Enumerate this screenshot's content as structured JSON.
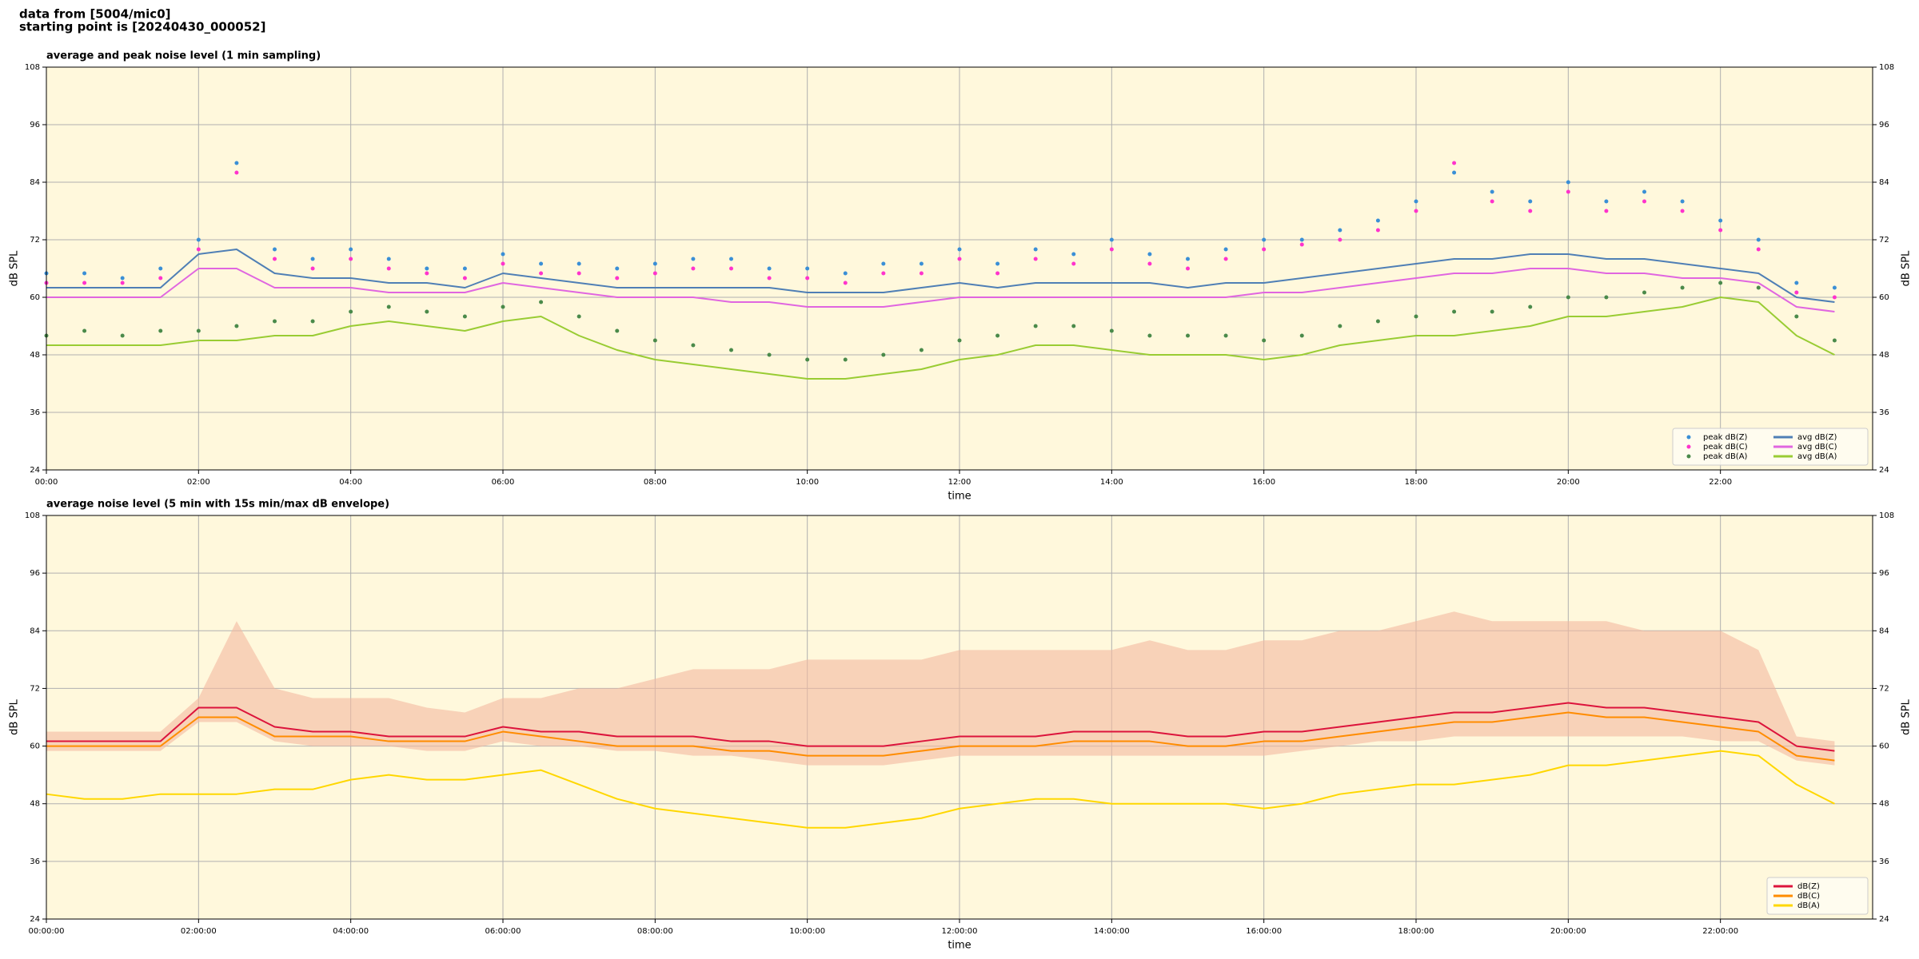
{
  "suptitle": [
    "data from [5004/mic0]",
    "starting point is [20240430_000052]"
  ],
  "chart_data": [
    {
      "type": "line",
      "title": "average and peak noise level (1 min sampling)",
      "xlabel": "time",
      "ylabel": "dB SPL",
      "background": "#fff8dc",
      "grid": true,
      "legend": "lower right",
      "x": [
        0,
        0.5,
        1,
        1.5,
        2,
        2.5,
        3,
        3.5,
        4,
        4.5,
        5,
        5.5,
        6,
        6.5,
        7,
        7.5,
        8,
        8.5,
        9,
        9.5,
        10,
        10.5,
        11,
        11.5,
        12,
        12.5,
        13,
        13.5,
        14,
        14.5,
        15,
        15.5,
        16,
        16.5,
        17,
        17.5,
        18,
        18.5,
        19,
        19.5,
        20,
        20.5,
        21,
        21.5,
        22,
        22.5,
        23,
        23.5
      ],
      "xlim": [
        0,
        24
      ],
      "xticks": [
        {
          "value": 0,
          "label": "00:00"
        },
        {
          "value": 2,
          "label": "02:00"
        },
        {
          "value": 4,
          "label": "04:00"
        },
        {
          "value": 6,
          "label": "06:00"
        },
        {
          "value": 8,
          "label": "08:00"
        },
        {
          "value": 10,
          "label": "10:00"
        },
        {
          "value": 12,
          "label": "12:00"
        },
        {
          "value": 14,
          "label": "14:00"
        },
        {
          "value": 16,
          "label": "16:00"
        },
        {
          "value": 18,
          "label": "18:00"
        },
        {
          "value": 20,
          "label": "20:00"
        },
        {
          "value": 22,
          "label": "22:00"
        }
      ],
      "ylim": [
        24,
        108
      ],
      "yticks": [
        24,
        36,
        48,
        60,
        72,
        84,
        96,
        108
      ],
      "series": [
        {
          "name": "peak dB(Z)",
          "type": "scatter",
          "color": "#3a8fd6",
          "values": [
            65,
            65,
            64,
            66,
            72,
            88,
            70,
            68,
            70,
            68,
            66,
            66,
            69,
            67,
            67,
            66,
            67,
            68,
            68,
            66,
            66,
            65,
            67,
            67,
            70,
            67,
            70,
            69,
            72,
            69,
            68,
            70,
            72,
            72,
            74,
            76,
            80,
            86,
            82,
            80,
            84,
            80,
            82,
            80,
            76,
            72,
            63,
            62
          ]
        },
        {
          "name": "peak dB(C)",
          "type": "scatter",
          "color": "#ff33cc",
          "values": [
            63,
            63,
            63,
            64,
            70,
            86,
            68,
            66,
            68,
            66,
            65,
            64,
            67,
            65,
            65,
            64,
            65,
            66,
            66,
            64,
            64,
            63,
            65,
            65,
            68,
            65,
            68,
            67,
            70,
            67,
            66,
            68,
            70,
            71,
            72,
            74,
            78,
            88,
            80,
            78,
            82,
            78,
            80,
            78,
            74,
            70,
            61,
            60
          ]
        },
        {
          "name": "peak dB(A)",
          "type": "scatter",
          "color": "#4a8a4a",
          "values": [
            52,
            53,
            52,
            53,
            53,
            54,
            55,
            55,
            57,
            58,
            57,
            56,
            58,
            59,
            56,
            53,
            51,
            50,
            49,
            48,
            47,
            47,
            48,
            49,
            51,
            52,
            54,
            54,
            53,
            52,
            52,
            52,
            51,
            52,
            54,
            55,
            56,
            57,
            57,
            58,
            60,
            60,
            61,
            62,
            63,
            62,
            56,
            51
          ]
        },
        {
          "name": "avg dB(Z)",
          "type": "line",
          "color": "#4f7fb5",
          "values": [
            62,
            62,
            62,
            62,
            69,
            70,
            65,
            64,
            64,
            63,
            63,
            62,
            65,
            64,
            63,
            62,
            62,
            62,
            62,
            62,
            61,
            61,
            61,
            62,
            63,
            62,
            63,
            63,
            63,
            63,
            62,
            63,
            63,
            64,
            65,
            66,
            67,
            68,
            68,
            69,
            69,
            68,
            68,
            67,
            66,
            65,
            60,
            59
          ]
        },
        {
          "name": "avg dB(C)",
          "type": "line",
          "color": "#e066e0",
          "values": [
            60,
            60,
            60,
            60,
            66,
            66,
            62,
            62,
            62,
            61,
            61,
            61,
            63,
            62,
            61,
            60,
            60,
            60,
            59,
            59,
            58,
            58,
            58,
            59,
            60,
            60,
            60,
            60,
            60,
            60,
            60,
            60,
            61,
            61,
            62,
            63,
            64,
            65,
            65,
            66,
            66,
            65,
            65,
            64,
            64,
            63,
            58,
            57
          ]
        },
        {
          "name": "avg dB(A)",
          "type": "line",
          "color": "#99cc33",
          "values": [
            50,
            50,
            50,
            50,
            51,
            51,
            52,
            52,
            54,
            55,
            54,
            53,
            55,
            56,
            52,
            49,
            47,
            46,
            45,
            44,
            43,
            43,
            44,
            45,
            47,
            48,
            50,
            50,
            49,
            48,
            48,
            48,
            47,
            48,
            50,
            51,
            52,
            52,
            53,
            54,
            56,
            56,
            57,
            58,
            60,
            59,
            52,
            48
          ]
        }
      ]
    },
    {
      "type": "line",
      "title": "average noise level (5 min with 15s min/max dB envelope)",
      "xlabel": "time",
      "ylabel": "dB SPL",
      "background": "#fff8dc",
      "grid": true,
      "legend": "lower right",
      "x": [
        0,
        0.5,
        1,
        1.5,
        2,
        2.5,
        3,
        3.5,
        4,
        4.5,
        5,
        5.5,
        6,
        6.5,
        7,
        7.5,
        8,
        8.5,
        9,
        9.5,
        10,
        10.5,
        11,
        11.5,
        12,
        12.5,
        13,
        13.5,
        14,
        14.5,
        15,
        15.5,
        16,
        16.5,
        17,
        17.5,
        18,
        18.5,
        19,
        19.5,
        20,
        20.5,
        21,
        21.5,
        22,
        22.5,
        23,
        23.5
      ],
      "xlim": [
        0,
        24
      ],
      "xticks": [
        {
          "value": 0,
          "label": "00:00:00"
        },
        {
          "value": 2,
          "label": "02:00:00"
        },
        {
          "value": 4,
          "label": "04:00:00"
        },
        {
          "value": 6,
          "label": "06:00:00"
        },
        {
          "value": 8,
          "label": "08:00:00"
        },
        {
          "value": 10,
          "label": "10:00:00"
        },
        {
          "value": 12,
          "label": "12:00:00"
        },
        {
          "value": 14,
          "label": "14:00:00"
        },
        {
          "value": 16,
          "label": "16:00:00"
        },
        {
          "value": 18,
          "label": "18:00:00"
        },
        {
          "value": 20,
          "label": "20:00:00"
        },
        {
          "value": 22,
          "label": "22:00:00"
        }
      ],
      "ylim": [
        24,
        108
      ],
      "yticks": [
        24,
        36,
        48,
        60,
        72,
        84,
        96,
        108
      ],
      "envelope_color": "#f4b9a0",
      "envelope_max": [
        63,
        63,
        63,
        63,
        70,
        86,
        72,
        70,
        70,
        70,
        68,
        67,
        70,
        70,
        72,
        72,
        74,
        76,
        76,
        76,
        78,
        78,
        78,
        78,
        80,
        80,
        80,
        80,
        80,
        82,
        80,
        80,
        82,
        82,
        84,
        84,
        86,
        88,
        86,
        86,
        86,
        86,
        84,
        84,
        84,
        80,
        62,
        61
      ],
      "envelope_min": [
        59,
        59,
        59,
        59,
        65,
        65,
        61,
        60,
        60,
        60,
        59,
        59,
        61,
        60,
        60,
        59,
        59,
        58,
        58,
        57,
        56,
        56,
        56,
        57,
        58,
        58,
        58,
        58,
        58,
        58,
        58,
        58,
        58,
        59,
        60,
        61,
        61,
        62,
        62,
        62,
        62,
        62,
        62,
        62,
        61,
        61,
        57,
        56
      ],
      "series": [
        {
          "name": "dB(Z)",
          "type": "line",
          "color": "#dc143c",
          "values": [
            61,
            61,
            61,
            61,
            68,
            68,
            64,
            63,
            63,
            62,
            62,
            62,
            64,
            63,
            63,
            62,
            62,
            62,
            61,
            61,
            60,
            60,
            60,
            61,
            62,
            62,
            62,
            63,
            63,
            63,
            62,
            62,
            63,
            63,
            64,
            65,
            66,
            67,
            67,
            68,
            69,
            68,
            68,
            67,
            66,
            65,
            60,
            59
          ]
        },
        {
          "name": "dB(C)",
          "type": "line",
          "color": "#ff8c00",
          "values": [
            60,
            60,
            60,
            60,
            66,
            66,
            62,
            62,
            62,
            61,
            61,
            61,
            63,
            62,
            61,
            60,
            60,
            60,
            59,
            59,
            58,
            58,
            58,
            59,
            60,
            60,
            60,
            61,
            61,
            61,
            60,
            60,
            61,
            61,
            62,
            63,
            64,
            65,
            65,
            66,
            67,
            66,
            66,
            65,
            64,
            63,
            58,
            57
          ]
        },
        {
          "name": "dB(A)",
          "type": "line",
          "color": "#ffd700",
          "values": [
            50,
            49,
            49,
            50,
            50,
            50,
            51,
            51,
            53,
            54,
            53,
            53,
            54,
            55,
            52,
            49,
            47,
            46,
            45,
            44,
            43,
            43,
            44,
            45,
            47,
            48,
            49,
            49,
            48,
            48,
            48,
            48,
            47,
            48,
            50,
            51,
            52,
            52,
            53,
            54,
            56,
            56,
            57,
            58,
            59,
            58,
            52,
            48
          ]
        }
      ]
    }
  ]
}
